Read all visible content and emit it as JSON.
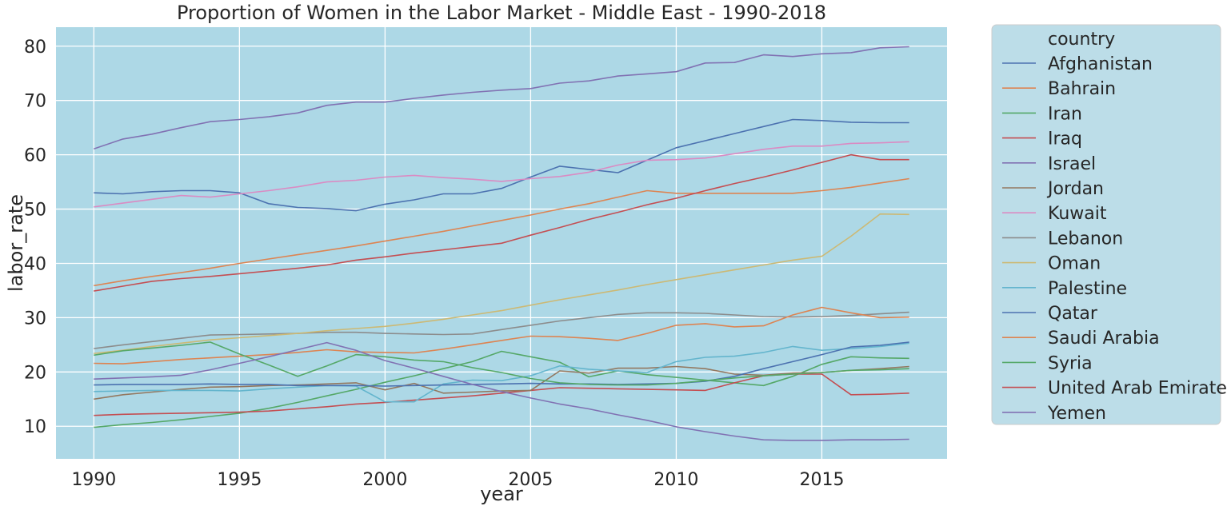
{
  "chart_data": {
    "type": "line",
    "title": "Proportion of Women in the Labor Market - Middle East - 1990-2018",
    "xlabel": "year",
    "ylabel": "labor_rate",
    "xlim": [
      1988.7,
      2019.3
    ],
    "ylim": [
      4,
      83.5
    ],
    "x_ticks": [
      1990,
      1995,
      2000,
      2005,
      2010,
      2015
    ],
    "y_ticks": [
      10,
      20,
      30,
      40,
      50,
      60,
      70,
      80
    ],
    "grid": true,
    "legend_title": "country",
    "legend_position": "outside-right",
    "background": "#add8e6",
    "grid_color": "#ffffff",
    "x": [
      1990,
      1991,
      1992,
      1993,
      1994,
      1995,
      1996,
      1997,
      1998,
      1999,
      2000,
      2001,
      2002,
      2003,
      2004,
      2005,
      2006,
      2007,
      2008,
      2009,
      2010,
      2011,
      2012,
      2013,
      2014,
      2015,
      2016,
      2017,
      2018
    ],
    "series": [
      {
        "name": "Afghanistan",
        "color": "#4c72b0",
        "values": [
          53.0,
          52.8,
          53.2,
          53.4,
          53.4,
          53.0,
          51.0,
          50.3,
          50.1,
          49.7,
          50.9,
          51.7,
          52.8,
          52.8,
          53.8,
          55.9,
          57.9,
          57.3,
          56.7,
          59.0,
          61.3,
          62.6,
          63.9,
          65.2,
          66.5,
          66.3,
          66.0,
          65.9,
          65.9
        ]
      },
      {
        "name": "Bahrain",
        "color": "#dd8452",
        "values": [
          35.9,
          36.8,
          37.6,
          38.3,
          39.1,
          40.0,
          40.8,
          41.6,
          42.4,
          43.2,
          44.1,
          45.0,
          45.9,
          46.9,
          47.9,
          48.9,
          50.0,
          51.0,
          52.2,
          53.4,
          52.9,
          52.9,
          52.9,
          52.9,
          52.9,
          53.4,
          54.0,
          54.8,
          55.6
        ]
      },
      {
        "name": "Iran",
        "color": "#55a868",
        "values": [
          9.8,
          10.3,
          10.7,
          11.2,
          11.8,
          12.4,
          13.3,
          14.4,
          15.6,
          16.8,
          18.1,
          19.3,
          20.6,
          21.9,
          23.8,
          22.8,
          21.8,
          19.1,
          20.2,
          19.5,
          19.0,
          18.5,
          18.0,
          17.5,
          19.2,
          21.4,
          22.8,
          22.6,
          22.5
        ]
      },
      {
        "name": "Iraq",
        "color": "#c44e52",
        "values": [
          12.0,
          12.2,
          12.3,
          12.4,
          12.5,
          12.6,
          12.8,
          13.2,
          13.6,
          14.1,
          14.4,
          14.8,
          15.2,
          15.6,
          16.1,
          16.6,
          17.1,
          17.0,
          16.9,
          16.8,
          16.7,
          16.6,
          18.0,
          19.3,
          19.6,
          19.6,
          15.8,
          15.9,
          16.1
        ]
      },
      {
        "name": "Israel",
        "color": "#8172b3",
        "values": [
          61.1,
          62.9,
          63.8,
          65.0,
          66.1,
          66.5,
          67.0,
          67.7,
          69.1,
          69.7,
          69.7,
          70.4,
          71.0,
          71.5,
          71.9,
          72.2,
          73.2,
          73.6,
          74.5,
          74.9,
          75.3,
          76.9,
          77.0,
          78.4,
          78.1,
          78.6,
          78.8,
          79.7,
          79.9
        ]
      },
      {
        "name": "Jordan",
        "color": "#937860",
        "values": [
          15.0,
          15.8,
          16.3,
          16.8,
          17.2,
          17.3,
          17.5,
          17.6,
          17.8,
          18.0,
          16.7,
          17.9,
          16.1,
          16.3,
          16.5,
          16.6,
          20.2,
          19.8,
          20.7,
          20.7,
          21.0,
          20.6,
          19.6,
          19.4,
          19.8,
          19.9,
          20.3,
          20.6,
          21.0
        ]
      },
      {
        "name": "Kuwait",
        "color": "#da8bc3",
        "values": [
          50.4,
          51.1,
          51.8,
          52.5,
          52.2,
          52.8,
          53.4,
          54.1,
          55.0,
          55.3,
          55.9,
          56.2,
          55.8,
          55.5,
          55.1,
          55.6,
          56.0,
          56.8,
          58.1,
          59.0,
          59.1,
          59.4,
          60.2,
          61.0,
          61.6,
          61.6,
          62.1,
          62.2,
          62.4
        ]
      },
      {
        "name": "Lebanon",
        "color": "#8c8c8c",
        "values": [
          24.3,
          25.0,
          25.6,
          26.2,
          26.8,
          26.9,
          27.0,
          27.1,
          27.3,
          27.3,
          27.1,
          27.0,
          26.9,
          27.0,
          27.8,
          28.6,
          29.4,
          30.0,
          30.6,
          30.9,
          30.9,
          30.8,
          30.5,
          30.2,
          30.1,
          30.2,
          30.4,
          30.7,
          31.0
        ]
      },
      {
        "name": "Oman",
        "color": "#ccb974",
        "values": [
          23.4,
          24.0,
          24.7,
          25.3,
          25.9,
          26.3,
          26.7,
          27.1,
          27.6,
          28.0,
          28.4,
          29.0,
          29.7,
          30.5,
          31.3,
          32.3,
          33.3,
          34.2,
          35.1,
          36.1,
          37.0,
          37.9,
          38.8,
          39.7,
          40.6,
          41.3,
          45.0,
          49.1,
          49.0
        ]
      },
      {
        "name": "Palestine",
        "color": "#64b5cd",
        "values": [
          16.4,
          16.5,
          16.6,
          16.6,
          16.6,
          16.5,
          16.9,
          17.2,
          17.5,
          17.4,
          14.5,
          14.5,
          17.8,
          18.5,
          18.4,
          19.3,
          21.1,
          20.5,
          20.2,
          19.9,
          21.9,
          22.7,
          22.9,
          23.6,
          24.7,
          24.0,
          24.3,
          24.7,
          25.3
        ]
      },
      {
        "name": "Qatar",
        "color": "#4c72b0",
        "values": [
          17.6,
          17.7,
          17.7,
          17.7,
          17.8,
          17.7,
          17.7,
          17.5,
          17.5,
          17.5,
          17.4,
          17.5,
          17.6,
          17.7,
          17.8,
          17.9,
          17.8,
          17.8,
          17.7,
          17.8,
          17.9,
          18.3,
          19.2,
          20.6,
          21.9,
          23.2,
          24.6,
          24.9,
          25.5
        ]
      },
      {
        "name": "Saudi Arabia",
        "color": "#dd8452",
        "values": [
          21.6,
          21.5,
          21.9,
          22.3,
          22.6,
          22.9,
          23.2,
          23.6,
          24.1,
          23.7,
          23.6,
          23.5,
          24.2,
          25.0,
          25.8,
          26.6,
          26.5,
          26.2,
          25.8,
          27.1,
          28.6,
          28.9,
          28.3,
          28.5,
          30.5,
          31.9,
          30.9,
          30.0,
          30.1
        ]
      },
      {
        "name": "Syria",
        "color": "#55a868",
        "values": [
          23.1,
          23.9,
          24.4,
          24.9,
          25.5,
          23.3,
          21.3,
          19.2,
          21.1,
          23.2,
          22.8,
          22.2,
          21.9,
          20.8,
          19.9,
          18.8,
          18.0,
          17.7,
          17.6,
          17.6,
          17.9,
          18.4,
          18.9,
          19.3,
          19.6,
          19.9,
          20.3,
          20.4,
          20.6
        ]
      },
      {
        "name": "United Arab Emirates",
        "color": "#c44e52",
        "values": [
          34.9,
          35.8,
          36.7,
          37.2,
          37.6,
          38.1,
          38.6,
          39.1,
          39.7,
          40.6,
          41.2,
          41.9,
          42.5,
          43.1,
          43.7,
          45.2,
          46.6,
          48.1,
          49.4,
          50.8,
          52.0,
          53.4,
          54.7,
          55.9,
          57.2,
          58.6,
          60.0,
          59.1,
          59.1
        ]
      },
      {
        "name": "Yemen",
        "color": "#8172b3",
        "values": [
          18.7,
          18.9,
          19.1,
          19.4,
          20.4,
          21.6,
          22.8,
          24.1,
          25.4,
          24.0,
          22.1,
          20.7,
          19.2,
          17.7,
          16.4,
          15.2,
          14.1,
          13.2,
          12.1,
          11.1,
          9.9,
          9.0,
          8.2,
          7.5,
          7.4,
          7.4,
          7.5,
          7.5,
          7.6
        ]
      }
    ]
  }
}
